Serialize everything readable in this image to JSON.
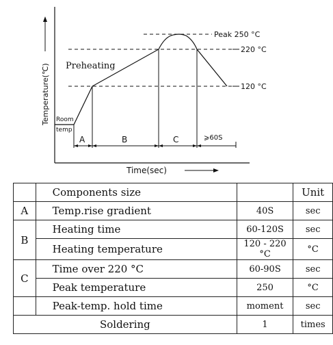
{
  "diagram": {
    "y_axis_label": "Temperature(℃)",
    "x_axis_label": "Time(sec)",
    "preheating_label": "Preheating",
    "peak_label": "Peak 250 °C",
    "level_220_label": "220 °C",
    "level_120_label": "120 °C",
    "room_label_line1": "Room",
    "room_label_line2": "temp",
    "zone_a": "A",
    "zone_b": "B",
    "zone_c": "C",
    "hold_time_label": "⩾60S"
  },
  "table": {
    "header": {
      "name": "Components size",
      "unit": "Unit"
    },
    "rows": [
      {
        "code": "A",
        "name": "Temp.rise gradient",
        "value": "40S",
        "unit": "sec"
      },
      {
        "code": "B",
        "name": "Heating time",
        "value": "60-120S",
        "unit": "sec"
      },
      {
        "name": "Heating temperature",
        "value": "120 - 220 °C",
        "unit": "°C"
      },
      {
        "code": "C",
        "name": "Time over 220 °C",
        "value": "60-90S",
        "unit": "sec"
      },
      {
        "name": "Peak temperature",
        "value": "250",
        "unit": "°C"
      },
      {
        "name": "Peak-temp. hold time",
        "value": "moment",
        "unit": "sec"
      }
    ],
    "soldering": {
      "name": "Soldering",
      "value": "1",
      "unit": "times"
    }
  }
}
